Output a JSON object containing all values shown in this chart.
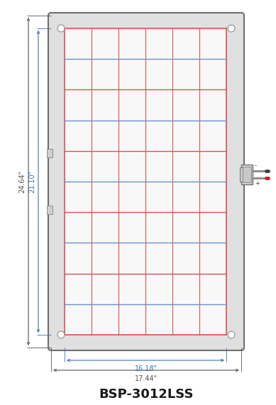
{
  "title": "BSP-3012LSS",
  "dim_width_inner": "16.18\"",
  "dim_width_outer": "17.44\"",
  "dim_height_inner": "21.10\"",
  "dim_height_outer": "24.64\"",
  "grid_red": "#e05050",
  "grid_blue": "#7090c8",
  "dim_color": "#555555",
  "dim_blue": "#4070b0",
  "bg_color": "#ffffff",
  "frame_edge": "#707070",
  "frame_face": "#e0e0e0",
  "cell_face": "#f8f8f8",
  "num_cols": 6,
  "num_rows": 10,
  "figsize": [
    3.89,
    5.71
  ],
  "dpi": 100
}
